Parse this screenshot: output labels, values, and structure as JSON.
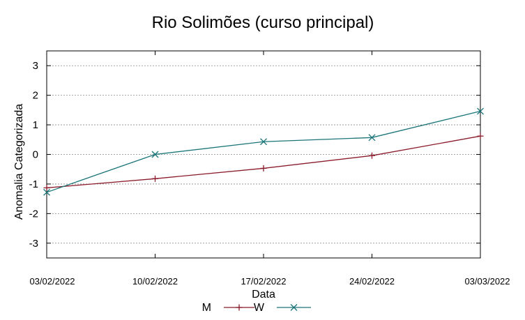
{
  "chart_data": {
    "type": "line",
    "title": "Rio Solimões (curso principal)",
    "xlabel": "Data",
    "ylabel": "Anomalia Categorizada",
    "categories": [
      "03/02/2022",
      "10/02/2022",
      "17/02/2022",
      "24/02/2022",
      "03/03/2022"
    ],
    "ylim": [
      -3.5,
      3.5
    ],
    "yticks": [
      -3,
      -2,
      -1,
      0,
      1,
      2,
      3
    ],
    "grid": true,
    "legend_position": "bottom",
    "series": [
      {
        "name": "M",
        "marker": "plus",
        "color": "#8b1a2b",
        "values": [
          -1.13,
          -0.82,
          -0.47,
          -0.04,
          0.62
        ]
      },
      {
        "name": "W",
        "marker": "cross",
        "color": "#1a7578",
        "values": [
          -1.28,
          0.0,
          0.43,
          0.57,
          1.46
        ]
      }
    ]
  }
}
